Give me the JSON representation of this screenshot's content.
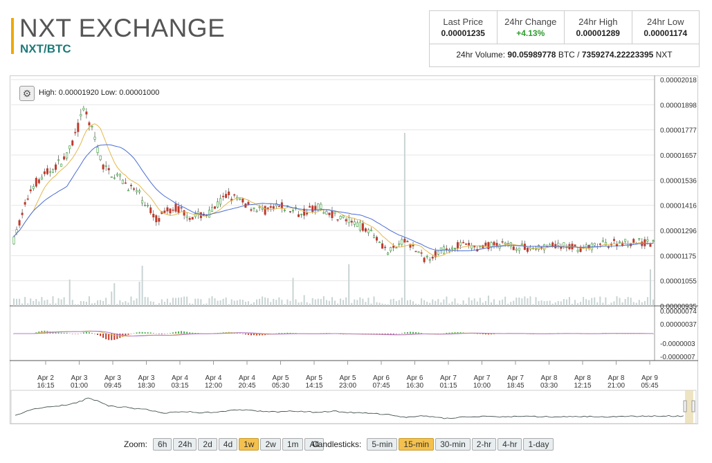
{
  "header": {
    "title": "NXT EXCHANGE",
    "pair": "NXT/BTC"
  },
  "stats": {
    "last_price_label": "Last Price",
    "last_price": "0.00001235",
    "change_label": "24hr Change",
    "change": "+4.13%",
    "high_label": "24hr High",
    "high": "0.00001289",
    "low_label": "24hr Low",
    "low": "0.00001174",
    "volume_label": "24hr Volume:",
    "volume_btc": "90.05989778",
    "btc_unit": "BTC /",
    "volume_nxt": "7359274.22223395",
    "nxt_unit": "NXT"
  },
  "chart": {
    "high_low": "High: 0.00001920  Low: 0.00001000",
    "y_ticks": [
      "0.00002018",
      "0.00001898",
      "0.00001777",
      "0.00001657",
      "0.00001536",
      "0.00001416",
      "0.00001296",
      "0.00001175",
      "0.00001055",
      "0.00000935"
    ],
    "macd_ticks": [
      "0.00000074",
      "0.00000037",
      "-0.0000003",
      "-0.0000007"
    ],
    "x_ticks": [
      [
        "Apr 2",
        "16:15"
      ],
      [
        "Apr 3",
        "01:00"
      ],
      [
        "Apr 3",
        "09:45"
      ],
      [
        "Apr 3",
        "18:30"
      ],
      [
        "Apr 4",
        "03:15"
      ],
      [
        "Apr 4",
        "12:00"
      ],
      [
        "Apr 4",
        "20:45"
      ],
      [
        "Apr 5",
        "05:30"
      ],
      [
        "Apr 5",
        "14:15"
      ],
      [
        "Apr 5",
        "23:00"
      ],
      [
        "Apr 6",
        "07:45"
      ],
      [
        "Apr 6",
        "16:30"
      ],
      [
        "Apr 7",
        "01:15"
      ],
      [
        "Apr 7",
        "10:00"
      ],
      [
        "Apr 7",
        "18:45"
      ],
      [
        "Apr 8",
        "03:30"
      ],
      [
        "Apr 8",
        "12:15"
      ],
      [
        "Apr 8",
        "21:00"
      ],
      [
        "Apr 9",
        "05:45"
      ]
    ]
  },
  "chart_data": {
    "type": "line",
    "title": "",
    "series": [
      {
        "x": [
          0,
          4,
          8,
          12,
          16,
          20,
          24,
          28,
          32,
          36,
          40,
          44,
          48,
          52,
          56,
          60,
          64,
          68,
          72,
          76,
          80,
          84,
          88,
          92,
          96,
          100,
          104,
          108,
          112,
          116,
          120,
          124,
          128,
          132,
          136,
          140,
          144
        ],
        "values": [
          1.25e-05,
          1.51e-05,
          1.58e-05,
          1.65e-05,
          1.88e-05,
          1.6e-05,
          1.54e-05,
          1.47e-05,
          1.35e-05,
          1.41e-05,
          1.36e-05,
          1.38e-05,
          1.47e-05,
          1.42e-05,
          1.39e-05,
          1.41e-05,
          1.38e-05,
          1.41e-05,
          1.37e-05,
          1.33e-05,
          1.3e-05,
          1.19e-05,
          1.25e-05,
          1.16e-05,
          1.2e-05,
          1.23e-05,
          1.21e-05,
          1.23e-05,
          1.22e-05,
          1.21e-05,
          1.22e-05,
          1.22e-05,
          1.21e-05,
          1.23e-05,
          1.24e-05,
          1.24e-05,
          1.23e-05
        ]
      }
    ],
    "ylim": [
      9.35e-06,
      2.018e-05
    ]
  },
  "controls": {
    "zoom_label": "Zoom:",
    "zoom": [
      "6h",
      "24h",
      "2d",
      "4d",
      "1w",
      "2w",
      "1m",
      "All"
    ],
    "zoom_active": "1w",
    "candle_label": "Candlesticks:",
    "candles": [
      "5-min",
      "15-min",
      "30-min",
      "2-hr",
      "4-hr",
      "1-day"
    ],
    "candle_active": "15-min"
  }
}
